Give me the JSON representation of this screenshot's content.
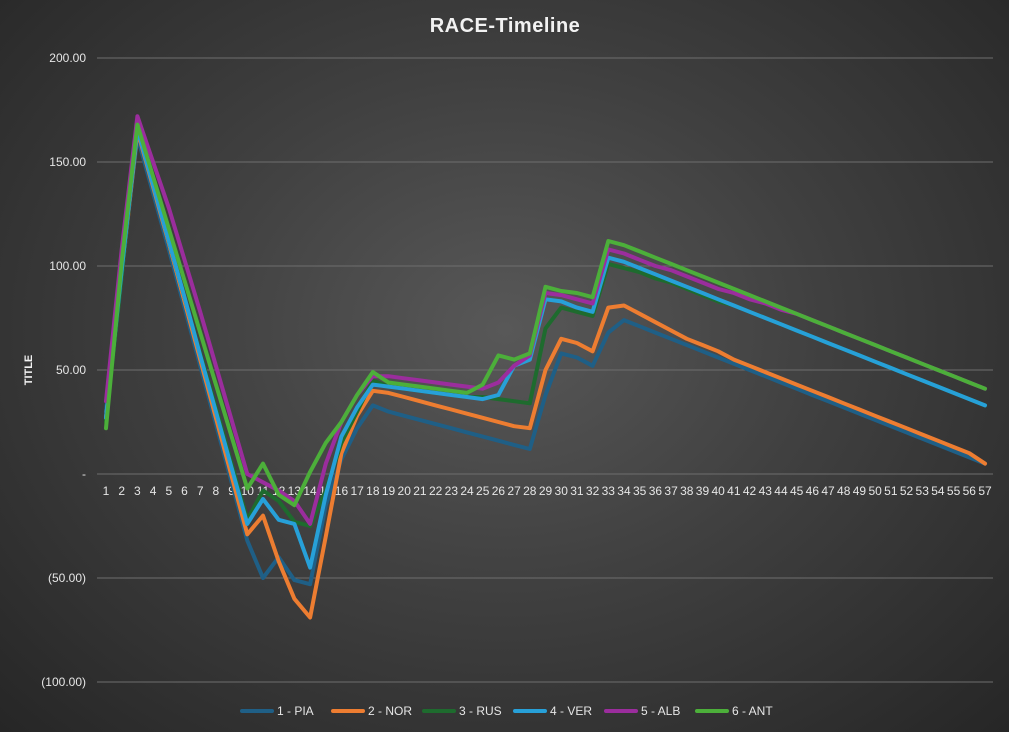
{
  "chart_data": {
    "type": "line",
    "title": "RACE-Timeline",
    "xlabel": "",
    "ylabel": "TITLE",
    "ylim": [
      -100,
      200
    ],
    "yticks": [
      200,
      150,
      100,
      50,
      0,
      -50,
      -100
    ],
    "ytick_labels": [
      "200.00",
      "150.00",
      "100.00",
      "50.00",
      "-",
      "(50.00)",
      "(100.00)"
    ],
    "grid": true,
    "legend_position": "bottom",
    "x": [
      1,
      2,
      3,
      4,
      5,
      6,
      7,
      8,
      9,
      10,
      11,
      12,
      13,
      14,
      15,
      16,
      17,
      18,
      19,
      20,
      21,
      22,
      23,
      24,
      25,
      26,
      27,
      28,
      29,
      30,
      31,
      32,
      33,
      34,
      35,
      36,
      37,
      38,
      39,
      40,
      41,
      42,
      43,
      44,
      45,
      46,
      47,
      48,
      49,
      50,
      51,
      52,
      53,
      54,
      55,
      56,
      57
    ],
    "series": [
      {
        "name": "1 - PIA",
        "color": "#1f5f86",
        "values": [
          30,
          100,
          162,
          135,
          108,
          80,
          52,
          24,
          -4,
          -32,
          -50,
          -40,
          -51,
          -53,
          -15,
          7,
          22,
          33,
          30,
          28,
          26,
          24,
          22,
          20,
          18,
          16,
          14,
          12,
          38,
          58,
          56,
          52,
          68,
          74,
          71,
          68,
          65,
          62,
          59,
          56,
          53,
          50,
          47,
          44,
          41,
          38,
          35,
          32,
          29,
          26,
          23,
          20,
          17,
          14,
          11,
          8,
          5
        ]
      },
      {
        "name": "2 - NOR",
        "color": "#ed7d31",
        "values": [
          27,
          96,
          165,
          138,
          111,
          83,
          55,
          27,
          -1,
          -29,
          -20,
          -42,
          -60,
          -69,
          -30,
          10,
          28,
          40,
          39,
          37,
          35,
          33,
          31,
          29,
          27,
          25,
          23,
          22,
          50,
          65,
          63,
          59,
          80,
          81,
          77,
          73,
          69,
          65,
          62,
          59,
          55,
          52,
          49,
          46,
          43,
          40,
          37,
          34,
          31,
          28,
          25,
          22,
          19,
          16,
          13,
          10,
          5
        ]
      },
      {
        "name": "3 - RUS",
        "color": "#1e6b2e",
        "values": [
          25,
          95,
          168,
          140,
          112,
          85,
          58,
          32,
          5,
          -22,
          -8,
          -13,
          -23,
          -25,
          -8,
          15,
          30,
          45,
          42,
          41,
          40,
          39,
          38,
          37,
          37,
          36,
          35,
          34,
          70,
          80,
          78,
          76,
          101,
          99,
          97,
          94,
          92,
          89,
          86,
          83,
          81,
          78,
          75,
          72,
          69,
          66,
          63,
          60,
          57,
          54,
          51,
          48,
          45,
          42,
          39,
          36,
          33
        ]
      },
      {
        "name": "4 - VER",
        "color": "#27a0d8",
        "values": [
          27,
          98,
          166,
          139,
          112,
          85,
          57,
          30,
          3,
          -24,
          -12,
          -22,
          -24,
          -45,
          -10,
          18,
          32,
          43,
          42,
          41,
          40,
          39,
          38,
          37,
          36,
          38,
          52,
          55,
          84,
          83,
          80,
          78,
          104,
          102,
          99,
          96,
          93,
          90,
          87,
          84,
          81,
          78,
          75,
          72,
          69,
          66,
          63,
          60,
          57,
          54,
          51,
          48,
          45,
          42,
          39,
          36,
          33
        ]
      },
      {
        "name": "5 - ALB",
        "color": "#9b2d9d",
        "values": [
          35,
          108,
          172,
          150,
          128,
          103,
          78,
          52,
          26,
          0,
          -4,
          -8,
          -13,
          -24,
          5,
          25,
          38,
          47,
          47,
          46,
          45,
          44,
          43,
          42,
          41,
          44,
          52,
          57,
          87,
          86,
          84,
          82,
          108,
          106,
          103,
          100,
          98,
          95,
          92,
          89,
          87,
          84,
          82,
          79,
          77,
          74,
          71,
          68,
          65,
          62,
          59,
          56,
          53,
          50,
          47,
          44,
          41
        ]
      },
      {
        "name": "6 - ANT",
        "color": "#4caf3a",
        "values": [
          22,
          102,
          168,
          143,
          118,
          93,
          68,
          43,
          18,
          -7,
          5,
          -10,
          -15,
          1,
          15,
          25,
          38,
          49,
          44,
          43,
          42,
          41,
          40,
          39,
          43,
          57,
          55,
          58,
          90,
          88,
          87,
          85,
          112,
          110,
          107,
          104,
          101,
          98,
          95,
          92,
          89,
          86,
          83,
          80,
          77,
          74,
          71,
          68,
          65,
          62,
          59,
          56,
          53,
          50,
          47,
          44,
          41
        ]
      }
    ]
  }
}
